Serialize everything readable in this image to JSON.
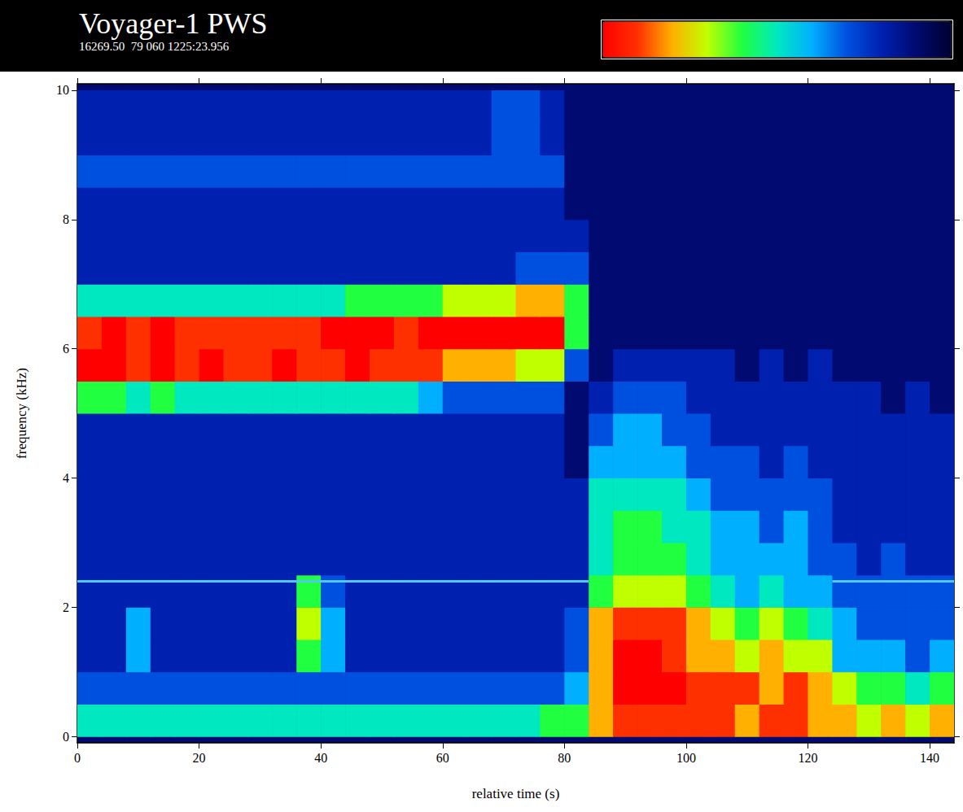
{
  "chart_data": {
    "type": "heatmap",
    "title": "Voyager-1 PWS",
    "subtitle": "16269.50  79 060 1225:23.956",
    "x_label": "relative time (s)",
    "y_label": "frequency (kHz)",
    "xlim": [
      0,
      144
    ],
    "xticks": [
      0,
      20,
      40,
      60,
      80,
      100,
      120,
      140
    ],
    "ylim": [
      -0.1,
      10.1
    ],
    "yticks": [
      0,
      2,
      4,
      6,
      8,
      10
    ],
    "grid": false,
    "x_bins": [
      0,
      4,
      8,
      12,
      16,
      20,
      24,
      28,
      32,
      36,
      40,
      44,
      48,
      52,
      56,
      60,
      64,
      68,
      72,
      76,
      80,
      84,
      88,
      92,
      96,
      100,
      104,
      108,
      112,
      116,
      120,
      124,
      128,
      132,
      136,
      140,
      144
    ],
    "y_bins": [
      0,
      0.5,
      1,
      1.5,
      2,
      2.5,
      3,
      3.5,
      4,
      4.5,
      5,
      5.5,
      6,
      6.5,
      7,
      7.5,
      8,
      8.5,
      9,
      9.5,
      10
    ],
    "cells": [
      [
        5,
        5,
        5,
        5,
        5,
        5,
        5,
        5,
        5,
        5,
        5,
        5,
        5,
        5,
        5,
        5,
        5,
        5,
        5,
        6,
        6,
        8,
        9,
        9,
        9,
        9,
        9,
        8,
        9,
        9,
        8,
        8,
        7,
        8,
        7,
        8
      ],
      [
        3,
        3,
        3,
        3,
        3,
        3,
        3,
        3,
        3,
        3,
        3,
        3,
        3,
        3,
        3,
        3,
        3,
        3,
        3,
        3,
        4,
        8,
        10,
        10,
        10,
        9,
        9,
        9,
        8,
        9,
        8,
        7,
        6,
        6,
        5,
        6
      ],
      [
        2,
        2,
        4,
        2,
        2,
        2,
        2,
        2,
        2,
        6,
        4,
        2,
        2,
        2,
        2,
        2,
        2,
        2,
        2,
        2,
        3,
        8,
        10,
        10,
        9,
        8,
        8,
        7,
        8,
        7,
        7,
        4,
        4,
        4,
        3,
        4
      ],
      [
        2,
        2,
        4,
        2,
        2,
        2,
        2,
        2,
        2,
        7,
        4,
        2,
        2,
        2,
        2,
        2,
        2,
        2,
        2,
        2,
        3,
        8,
        9,
        9,
        9,
        8,
        7,
        6,
        7,
        6,
        5,
        4,
        3,
        3,
        3,
        3
      ],
      [
        2,
        2,
        2,
        2,
        2,
        2,
        2,
        2,
        2,
        6,
        3,
        2,
        2,
        2,
        2,
        2,
        2,
        2,
        2,
        2,
        2,
        6,
        7,
        7,
        7,
        6,
        5,
        4,
        5,
        4,
        4,
        3,
        3,
        3,
        3,
        3
      ],
      [
        2,
        2,
        2,
        2,
        2,
        2,
        2,
        2,
        2,
        2,
        2,
        2,
        2,
        2,
        2,
        2,
        2,
        2,
        2,
        2,
        2,
        5,
        6,
        6,
        6,
        5,
        4,
        4,
        4,
        4,
        3,
        3,
        2,
        3,
        2,
        2
      ],
      [
        2,
        2,
        2,
        2,
        2,
        2,
        2,
        2,
        2,
        2,
        2,
        2,
        2,
        2,
        2,
        2,
        2,
        2,
        2,
        2,
        2,
        5,
        6,
        6,
        5,
        5,
        4,
        4,
        3,
        4,
        3,
        2,
        2,
        2,
        2,
        2
      ],
      [
        2,
        2,
        2,
        2,
        2,
        2,
        2,
        2,
        2,
        2,
        2,
        2,
        2,
        2,
        2,
        2,
        2,
        2,
        2,
        2,
        2,
        5,
        5,
        5,
        5,
        4,
        3,
        3,
        3,
        3,
        3,
        2,
        2,
        2,
        2,
        2
      ],
      [
        2,
        2,
        2,
        2,
        2,
        2,
        2,
        2,
        2,
        2,
        2,
        2,
        2,
        2,
        2,
        2,
        2,
        2,
        2,
        2,
        1,
        4,
        4,
        4,
        4,
        3,
        3,
        3,
        2,
        3,
        2,
        2,
        2,
        2,
        2,
        2
      ],
      [
        2,
        2,
        2,
        2,
        2,
        2,
        2,
        2,
        2,
        2,
        2,
        2,
        2,
        2,
        2,
        2,
        2,
        2,
        2,
        2,
        1,
        3,
        4,
        4,
        3,
        3,
        2,
        2,
        2,
        2,
        2,
        2,
        2,
        2,
        2,
        2
      ],
      [
        6,
        6,
        5,
        6,
        5,
        5,
        5,
        5,
        5,
        5,
        5,
        5,
        5,
        5,
        4,
        3,
        3,
        3,
        3,
        3,
        1,
        2,
        3,
        3,
        3,
        2,
        2,
        2,
        2,
        2,
        2,
        2,
        2,
        1,
        2,
        1
      ],
      [
        10,
        10,
        9,
        10,
        9,
        10,
        9,
        9,
        10,
        9,
        9,
        10,
        9,
        9,
        9,
        8,
        8,
        8,
        7,
        7,
        3,
        1,
        2,
        2,
        2,
        2,
        2,
        1,
        2,
        1,
        2,
        1,
        1,
        1,
        1,
        1
      ],
      [
        9,
        10,
        9,
        10,
        9,
        9,
        9,
        9,
        9,
        9,
        10,
        10,
        10,
        9,
        10,
        10,
        10,
        10,
        10,
        10,
        6,
        1,
        1,
        1,
        1,
        1,
        1,
        1,
        1,
        1,
        1,
        1,
        1,
        1,
        1,
        1
      ],
      [
        5,
        5,
        5,
        5,
        5,
        5,
        5,
        5,
        5,
        5,
        5,
        6,
        6,
        6,
        6,
        7,
        7,
        7,
        8,
        8,
        6,
        1,
        1,
        1,
        1,
        1,
        1,
        1,
        1,
        1,
        1,
        1,
        1,
        1,
        1,
        1
      ],
      [
        2,
        2,
        2,
        2,
        2,
        2,
        2,
        2,
        2,
        2,
        2,
        2,
        2,
        2,
        2,
        2,
        2,
        2,
        3,
        3,
        3,
        1,
        1,
        1,
        1,
        1,
        1,
        1,
        1,
        1,
        1,
        1,
        1,
        1,
        1,
        1
      ],
      [
        2,
        2,
        2,
        2,
        2,
        2,
        2,
        2,
        2,
        2,
        2,
        2,
        2,
        2,
        2,
        2,
        2,
        2,
        2,
        2,
        2,
        1,
        1,
        1,
        1,
        1,
        1,
        1,
        1,
        1,
        1,
        1,
        1,
        1,
        1,
        1
      ],
      [
        2,
        2,
        2,
        2,
        2,
        2,
        2,
        2,
        2,
        2,
        2,
        2,
        2,
        2,
        2,
        2,
        2,
        2,
        2,
        2,
        1,
        1,
        1,
        1,
        1,
        1,
        1,
        1,
        1,
        1,
        1,
        1,
        1,
        1,
        1,
        1
      ],
      [
        3,
        3,
        3,
        3,
        3,
        3,
        3,
        3,
        3,
        3,
        3,
        3,
        3,
        3,
        3,
        3,
        3,
        3,
        3,
        3,
        1,
        1,
        1,
        1,
        1,
        1,
        1,
        1,
        1,
        1,
        1,
        1,
        1,
        1,
        1,
        1
      ],
      [
        2,
        2,
        2,
        2,
        2,
        2,
        2,
        2,
        2,
        2,
        2,
        2,
        2,
        2,
        2,
        2,
        2,
        3,
        3,
        2,
        1,
        1,
        1,
        1,
        1,
        1,
        1,
        1,
        1,
        1,
        1,
        1,
        1,
        1,
        1,
        1
      ],
      [
        2,
        2,
        2,
        2,
        2,
        2,
        2,
        2,
        2,
        2,
        2,
        2,
        2,
        2,
        2,
        2,
        2,
        3,
        3,
        2,
        1,
        1,
        1,
        1,
        1,
        1,
        1,
        1,
        1,
        1,
        1,
        1,
        1,
        1,
        1,
        1
      ]
    ],
    "colorbar": {
      "range": [
        0,
        10
      ]
    },
    "series": [
      {
        "type": "line",
        "x": [
          0,
          84,
          86,
          124,
          144
        ],
        "values": [
          2.4,
          2.4,
          null,
          2.4,
          2.4
        ],
        "color": "#50c8f0"
      }
    ]
  }
}
